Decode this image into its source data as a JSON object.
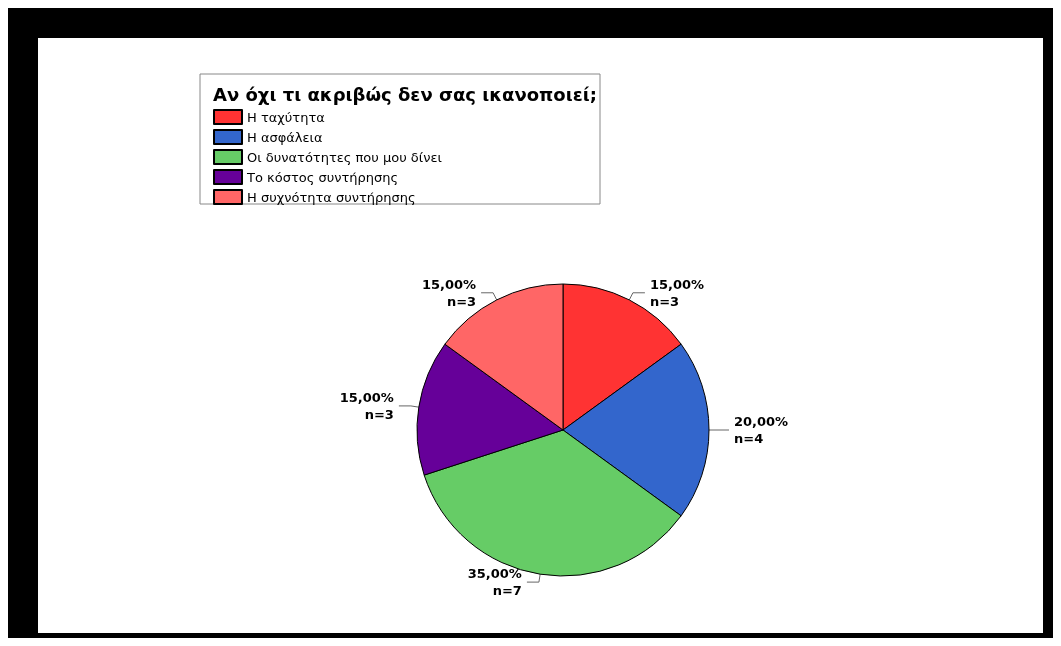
{
  "chart_data": {
    "type": "pie",
    "legend_title": "Αν όχι τι ακριβώς δεν σας ικανοποιεί;",
    "categories": [
      "Η ταχύτητα",
      "Η ασφάλεια",
      "Οι δυνατότητες που μου δίνει",
      "Το κόστος συντήρησης",
      "Η συχνότητα συντήρησης"
    ],
    "values": [
      15,
      20,
      35,
      15,
      15
    ],
    "colors": [
      "#ff3333",
      "#3366cc",
      "#66cc66",
      "#660099",
      "#ff6666"
    ],
    "value_labels": [
      "15,00%\nn=3",
      "20,00%\nn=4",
      "35,00%\nn=7",
      "15,00%\nn=3",
      "15,00%\nn=3"
    ],
    "legend": "top"
  }
}
